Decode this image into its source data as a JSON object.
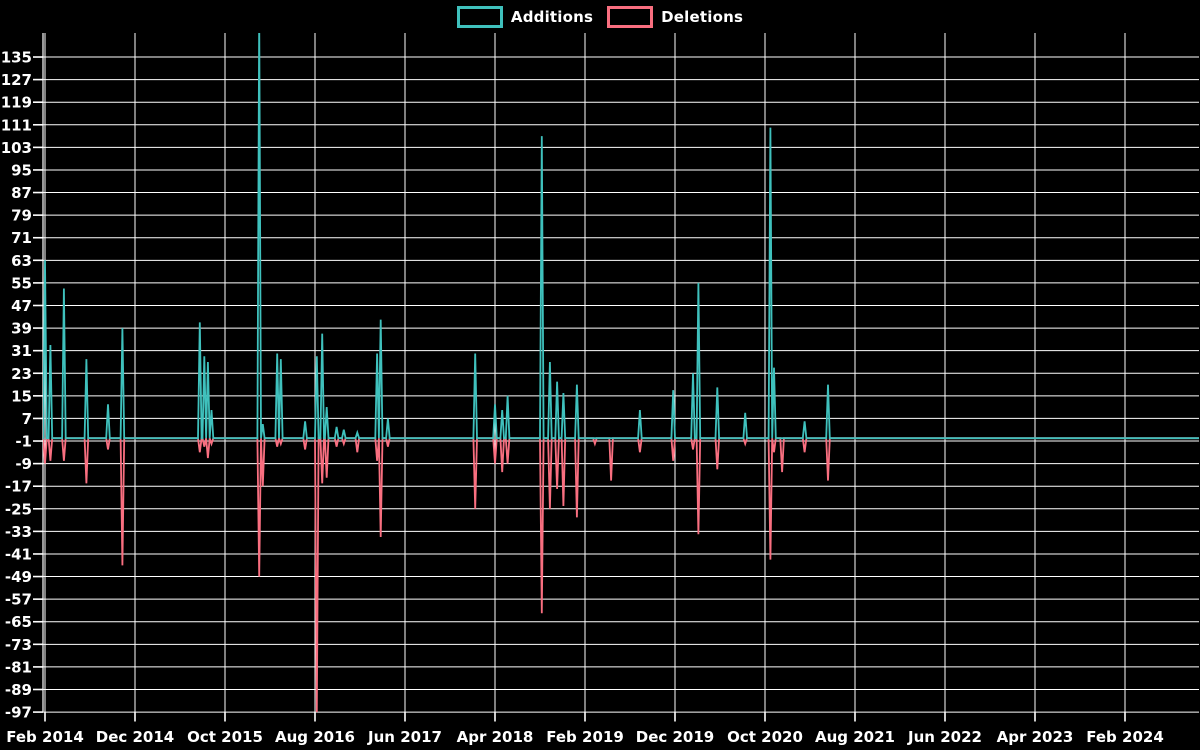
{
  "legend": {
    "items": [
      {
        "id": "additions",
        "label": "Additions",
        "color": "#3fc1bd"
      },
      {
        "id": "deletions",
        "label": "Deletions",
        "color": "#f96f80"
      }
    ]
  },
  "chart_data": {
    "type": "line",
    "title": "",
    "description_visible_text_only": "Code additions and deletions over time, spiky line chart on black background with white grid",
    "colors": {
      "additions_line": "#3fc1bd",
      "deletions_line": "#f96f80",
      "background": "#000000",
      "grid": "#ffffff",
      "text": "#ffffff"
    },
    "legend_position": "top-center",
    "grid": true,
    "baseline": 0,
    "x_axis": {
      "tick_labels": [
        "Feb 2014",
        "Dec 2014",
        "Oct 2015",
        "Aug 2016",
        "Jun 2017",
        "Apr 2018",
        "Feb 2019",
        "Dec 2019",
        "Oct 2020",
        "Aug 2021",
        "Jun 2022",
        "Apr 2023",
        "Feb 2024"
      ],
      "tick_months_since_start": [
        0,
        10,
        20,
        30,
        40,
        50,
        60,
        70,
        80,
        90,
        100,
        110,
        120
      ],
      "visible_month_span": [
        -0.25,
        128.2
      ]
    },
    "y_axis": {
      "ticks": [
        135,
        127,
        119,
        111,
        103,
        95,
        87,
        79,
        71,
        63,
        55,
        47,
        39,
        31,
        23,
        15,
        7,
        -1,
        -9,
        -17,
        -25,
        -33,
        -41,
        -49,
        -57,
        -65,
        -73,
        -81,
        -89,
        -97
      ],
      "min": -97,
      "max": 142.8,
      "step": 8
    },
    "clipped_spike": {
      "date": "Jan 2016",
      "series": "Additions",
      "value_estimate": 150,
      "note": "spike exceeds top of plot area"
    },
    "points": [
      {
        "m": 0.0,
        "date": "Feb 2014",
        "additions": 63,
        "deletions": -9
      },
      {
        "m": 0.6,
        "date": "Mar 2014",
        "additions": 33,
        "deletions": -8
      },
      {
        "m": 2.1,
        "date": "Apr 2014",
        "additions": 53,
        "deletions": -8
      },
      {
        "m": 4.6,
        "date": "Jun 2014",
        "additions": 28,
        "deletions": -16
      },
      {
        "m": 7.0,
        "date": "Sep 2014",
        "additions": 12,
        "deletions": -4
      },
      {
        "m": 8.6,
        "date": "Oct 2014",
        "additions": 39,
        "deletions": -45
      },
      {
        "m": 17.2,
        "date": "Jul 2015",
        "additions": 41,
        "deletions": -5
      },
      {
        "m": 17.7,
        "date": "Jul 2015",
        "additions": 29,
        "deletions": -3
      },
      {
        "m": 18.1,
        "date": "Aug 2015",
        "additions": 27,
        "deletions": -7
      },
      {
        "m": 18.5,
        "date": "Aug 2015",
        "additions": 10,
        "deletions": -2
      },
      {
        "m": 23.8,
        "date": "Jan 2016",
        "additions": 150,
        "deletions": -49
      },
      {
        "m": 24.2,
        "date": "Feb 2016",
        "additions": 5,
        "deletions": -17
      },
      {
        "m": 25.8,
        "date": "Mar 2016",
        "additions": 30,
        "deletions": -3
      },
      {
        "m": 26.2,
        "date": "Apr 2016",
        "additions": 28,
        "deletions": -2
      },
      {
        "m": 28.9,
        "date": "Jun 2016",
        "additions": 6,
        "deletions": -4
      },
      {
        "m": 30.2,
        "date": "Aug 2016",
        "additions": 29,
        "deletions": -97
      },
      {
        "m": 30.8,
        "date": "Aug 2016",
        "additions": 37,
        "deletions": -16
      },
      {
        "m": 31.3,
        "date": "Sep 2016",
        "additions": 11,
        "deletions": -14
      },
      {
        "m": 32.4,
        "date": "Oct 2016",
        "additions": 4,
        "deletions": -3
      },
      {
        "m": 33.2,
        "date": "Nov 2016",
        "additions": 3,
        "deletions": -2
      },
      {
        "m": 34.7,
        "date": "Dec 2016",
        "additions": 2,
        "deletions": -5
      },
      {
        "m": 36.9,
        "date": "Mar 2017",
        "additions": 30,
        "deletions": -8
      },
      {
        "m": 37.3,
        "date": "Mar 2017",
        "additions": 42,
        "deletions": -35
      },
      {
        "m": 38.1,
        "date": "Apr 2017",
        "additions": 7,
        "deletions": -3
      },
      {
        "m": 47.8,
        "date": "Jan 2018",
        "additions": 30,
        "deletions": -25
      },
      {
        "m": 50.0,
        "date": "Apr 2018",
        "additions": 12,
        "deletions": -9
      },
      {
        "m": 50.8,
        "date": "Apr 2018",
        "additions": 10,
        "deletions": -12
      },
      {
        "m": 51.4,
        "date": "May 2018",
        "additions": 15,
        "deletions": -9
      },
      {
        "m": 55.2,
        "date": "Sep 2018",
        "additions": 107,
        "deletions": -62
      },
      {
        "m": 56.1,
        "date": "Oct 2018",
        "additions": 27,
        "deletions": -25
      },
      {
        "m": 56.9,
        "date": "Oct 2018",
        "additions": 20,
        "deletions": -18
      },
      {
        "m": 57.6,
        "date": "Nov 2018",
        "additions": 16,
        "deletions": -24
      },
      {
        "m": 59.1,
        "date": "Jan 2019",
        "additions": 19,
        "deletions": -28
      },
      {
        "m": 61.1,
        "date": "Mar 2019",
        "additions": 0,
        "deletions": -2
      },
      {
        "m": 62.9,
        "date": "Apr 2019",
        "additions": 0,
        "deletions": -15
      },
      {
        "m": 66.1,
        "date": "Aug 2019",
        "additions": 10,
        "deletions": -5
      },
      {
        "m": 69.8,
        "date": "Nov 2019",
        "additions": 17,
        "deletions": -8
      },
      {
        "m": 72.0,
        "date": "Feb 2020",
        "additions": 23,
        "deletions": -4
      },
      {
        "m": 72.6,
        "date": "Feb 2020",
        "additions": 55,
        "deletions": -34
      },
      {
        "m": 74.7,
        "date": "Apr 2020",
        "additions": 18,
        "deletions": -11
      },
      {
        "m": 77.8,
        "date": "Jul 2020",
        "additions": 9,
        "deletions": -2
      },
      {
        "m": 80.6,
        "date": "Oct 2020",
        "additions": 110,
        "deletions": -43
      },
      {
        "m": 81.0,
        "date": "Oct 2020",
        "additions": 25,
        "deletions": -5
      },
      {
        "m": 81.9,
        "date": "Nov 2020",
        "additions": 0,
        "deletions": -12
      },
      {
        "m": 84.4,
        "date": "Feb 2021",
        "additions": 6,
        "deletions": -5
      },
      {
        "m": 87.0,
        "date": "May 2021",
        "additions": 19,
        "deletions": -15
      }
    ]
  }
}
